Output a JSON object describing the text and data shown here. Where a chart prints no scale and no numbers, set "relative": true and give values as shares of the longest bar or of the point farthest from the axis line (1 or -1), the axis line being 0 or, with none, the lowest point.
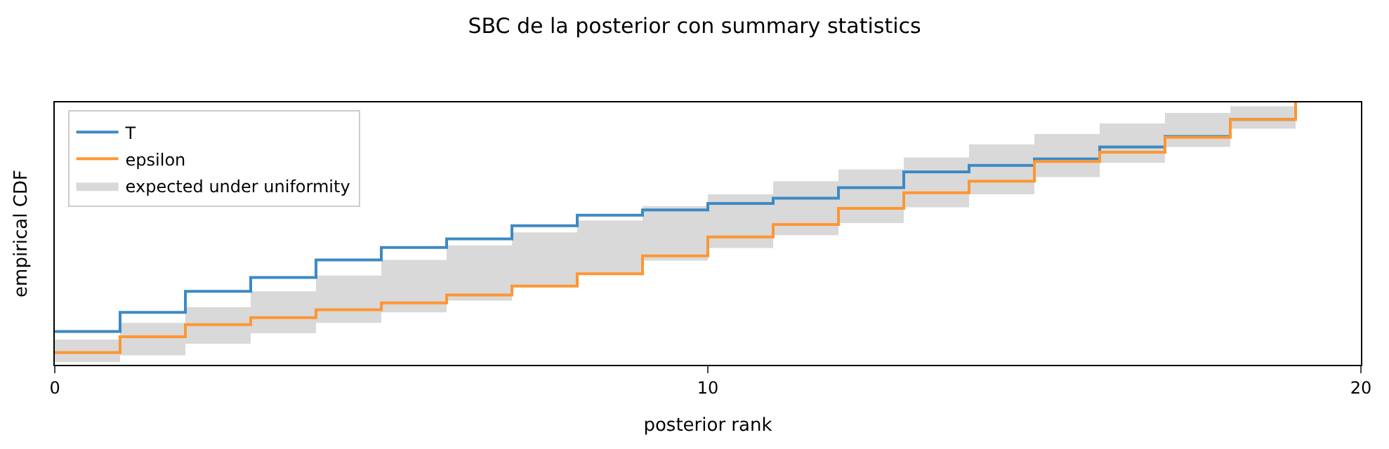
{
  "chart_data": {
    "type": "step",
    "title": "SBC de la posterior con summary statistics",
    "xlabel": "posterior rank",
    "ylabel": "empirical CDF",
    "x": [
      0,
      1,
      2,
      3,
      4,
      5,
      6,
      7,
      8,
      9,
      10,
      11,
      12,
      13,
      14,
      15,
      16,
      17,
      18,
      19
    ],
    "relative": true,
    "xlim": [
      0,
      20
    ],
    "xticks": [
      0,
      10,
      20
    ],
    "tick_labels": "x",
    "legend": "top left",
    "marker": "none",
    "line_style": "solid",
    "series": [
      {
        "name": "expected under uniformity",
        "type": "area",
        "color": "#d9d9d9",
        "values": [
          null,
          null,
          null,
          null,
          null,
          null,
          null,
          null,
          null,
          null,
          null,
          null,
          null,
          null,
          null,
          null,
          null,
          null,
          null,
          null
        ],
        "lower": [
          0.01,
          0.036,
          0.08,
          0.12,
          0.16,
          0.2,
          0.245,
          0.297,
          0.347,
          0.397,
          0.445,
          0.494,
          0.54,
          0.6,
          0.65,
          0.715,
          0.77,
          0.83,
          0.9,
          0.9
        ],
        "upper": [
          0.096,
          0.16,
          0.22,
          0.28,
          0.34,
          0.4,
          0.455,
          0.505,
          0.55,
          0.605,
          0.65,
          0.7,
          0.745,
          0.79,
          0.84,
          0.88,
          0.92,
          0.96,
          0.985,
          0.985
        ]
      },
      {
        "name": "T",
        "color": "#3c8ac4",
        "values": [
          0.127,
          0.2,
          0.28,
          0.333,
          0.4,
          0.447,
          0.48,
          0.53,
          0.57,
          0.59,
          0.615,
          0.635,
          0.675,
          0.735,
          0.76,
          0.785,
          0.83,
          0.87,
          0.935,
          1.0
        ]
      },
      {
        "name": "epsilon",
        "color": "#ff9633",
        "values": [
          0.047,
          0.107,
          0.153,
          0.18,
          0.21,
          0.236,
          0.266,
          0.3,
          0.347,
          0.415,
          0.487,
          0.535,
          0.596,
          0.656,
          0.7,
          0.775,
          0.81,
          0.867,
          0.935,
          1.0
        ]
      }
    ]
  }
}
